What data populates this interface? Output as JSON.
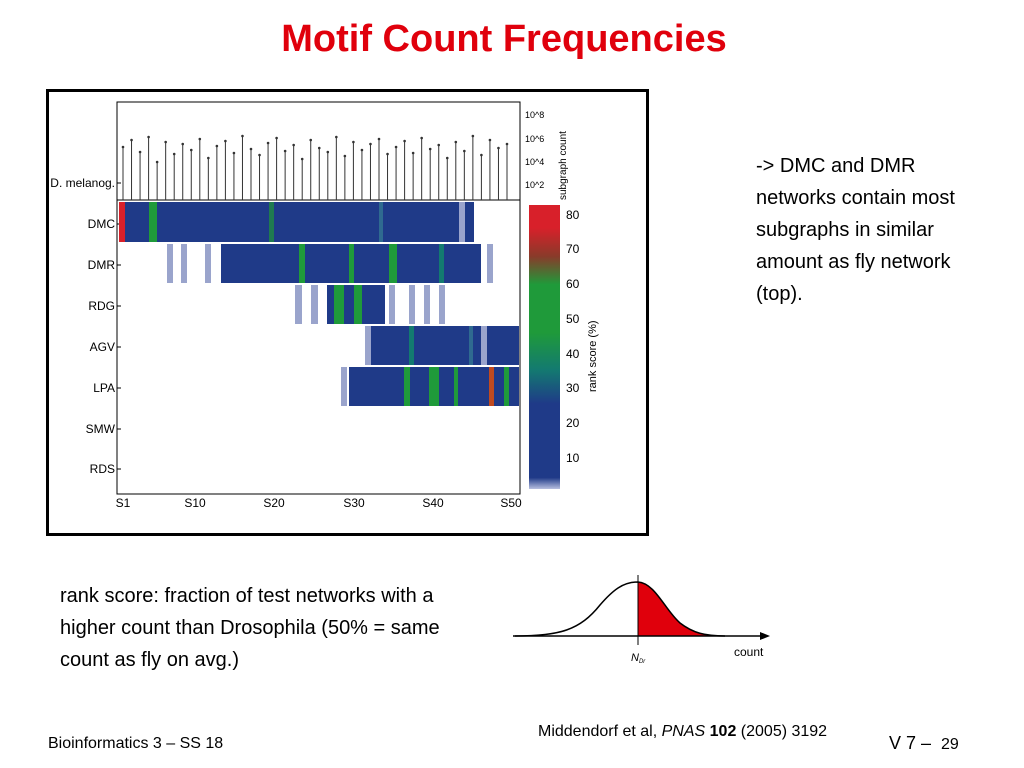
{
  "slide": {
    "title": "Motif Count Frequencies",
    "side_note": "-> DMC and DMR networks contain most subgraphs in similar amount as fly network (top).",
    "rank_note": "rank score:  fraction of test networks with a higher count than Drosophila (50% = same count as fly on avg.)",
    "footer_left": "Bioinformatics 3 – SS 18",
    "citation": {
      "authors": "Middendorf et al, ",
      "journal": "PNAS",
      "volume": " 102",
      "rest": " (2005) 3192"
    },
    "footer_right": "V 7 –",
    "page": "29"
  },
  "figure": {
    "row_labels": [
      "D. melanog.",
      "DMC",
      "DMR",
      "RDG",
      "AGV",
      "LPA",
      "SMW",
      "RDS"
    ],
    "x_ticks": [
      "S1",
      "S10",
      "S20",
      "S30",
      "S40",
      "S50"
    ],
    "count_axis_label": "subgraph count",
    "count_ticks": [
      "10^8",
      "10^6",
      "10^4",
      "10^2"
    ],
    "colorbar_label": "rank score (%)",
    "colorbar_ticks": [
      "80",
      "70",
      "60",
      "50",
      "40",
      "30",
      "20",
      "10"
    ]
  },
  "distribution": {
    "x_label": "count",
    "marker": "N",
    "marker_sub": "Dr"
  },
  "colors": {
    "title": "#e0000c",
    "low_rank": "#1f3a88",
    "mid_rank": "#1f9a3a",
    "high_rank": "#d8202a"
  }
}
